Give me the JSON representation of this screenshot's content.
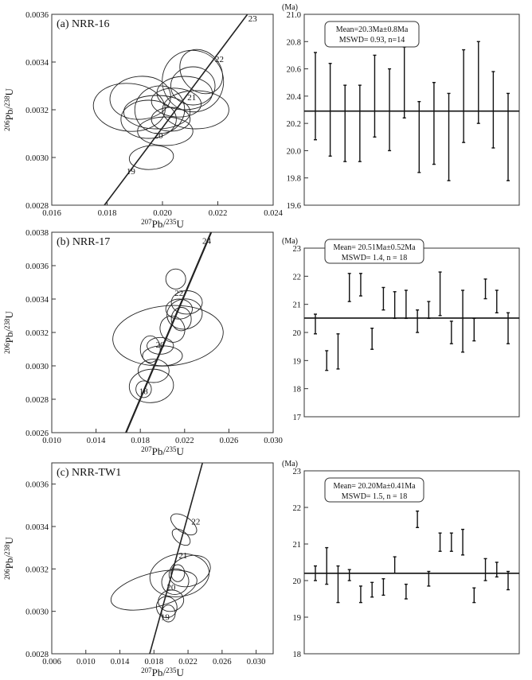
{
  "panels": [
    {
      "concordia": {
        "label": "(a)  NRR-16",
        "xlim": [
          0.016,
          0.024
        ],
        "ylim": [
          0.0028,
          0.0036
        ],
        "xticks": [
          "0.016",
          "0.018",
          "0.020",
          "0.022",
          "0.024"
        ],
        "yticks": [
          "0.0028",
          "0.0030",
          "0.0032",
          "0.0034",
          "0.0036"
        ],
        "xlabel": "207Pb/235U",
        "ylabel": "206Pb/238U",
        "line": [
          [
            0.0179,
            0.0028
          ],
          [
            0.0232,
            0.00362
          ]
        ],
        "line_width": 1.6,
        "age_labels": [
          {
            "text": "23",
            "x": 0.0231,
            "y": 0.00357
          },
          {
            "text": "22",
            "x": 0.0219,
            "y": 0.0034
          },
          {
            "text": "21",
            "x": 0.0209,
            "y": 0.00324
          },
          {
            "text": "20",
            "x": 0.0197,
            "y": 0.00308
          },
          {
            "text": "19",
            "x": 0.0187,
            "y": 0.00293
          }
        ],
        "ellipses": [
          {
            "cx": 0.0188,
            "cy": 0.00321,
            "rx": 0.0013,
            "ry": 0.0001,
            "rot": -5
          },
          {
            "cx": 0.0192,
            "cy": 0.00325,
            "rx": 0.0011,
            "ry": 9e-05,
            "rot": 5
          },
          {
            "cx": 0.0195,
            "cy": 0.00316,
            "rx": 0.001,
            "ry": 8e-05,
            "rot": 0
          },
          {
            "cx": 0.0199,
            "cy": 0.0032,
            "rx": 0.0009,
            "ry": 0.0001,
            "rot": 10
          },
          {
            "cx": 0.0201,
            "cy": 0.00311,
            "rx": 0.001,
            "ry": 6e-05,
            "rot": 0
          },
          {
            "cx": 0.0196,
            "cy": 0.003,
            "rx": 0.0008,
            "ry": 5e-05,
            "rot": 5
          },
          {
            "cx": 0.0211,
            "cy": 0.00332,
            "rx": 0.0011,
            "ry": 0.00013,
            "rot": 35
          },
          {
            "cx": 0.0211,
            "cy": 0.0033,
            "rx": 0.0008,
            "ry": 8e-05,
            "rot": 0
          },
          {
            "cx": 0.0208,
            "cy": 0.00327,
            "rx": 0.001,
            "ry": 7e-05,
            "rot": 0
          },
          {
            "cx": 0.0212,
            "cy": 0.0032,
            "rx": 0.0012,
            "ry": 8e-05,
            "rot": 0
          },
          {
            "cx": 0.0205,
            "cy": 0.00323,
            "rx": 0.0009,
            "ry": 6e-05,
            "rot": -5
          },
          {
            "cx": 0.0203,
            "cy": 0.00316,
            "rx": 0.0007,
            "ry": 5e-05,
            "rot": 0
          },
          {
            "cx": 0.0198,
            "cy": 0.00319,
            "rx": 0.0012,
            "ry": 7e-05,
            "rot": 0
          },
          {
            "cx": 0.0214,
            "cy": 0.00336,
            "rx": 0.0007,
            "ry": 0.0001,
            "rot": 40
          }
        ]
      },
      "weighted_mean": {
        "unit": "(Ma)",
        "ylim": [
          19.6,
          21.0
        ],
        "yticks": [
          "19.6",
          "19.8",
          "20.0",
          "20.2",
          "20.4",
          "20.6",
          "20.8",
          "21.0"
        ],
        "mean": 20.29,
        "stats_line1": "Mean=20.3Ma±0.8Ma",
        "stats_line2": "MSWD= 0.93, n=14",
        "bars": [
          [
            20.08,
            20.72
          ],
          [
            19.96,
            20.64
          ],
          [
            19.92,
            20.48
          ],
          [
            19.92,
            20.48
          ],
          [
            20.1,
            20.7
          ],
          [
            20.0,
            20.6
          ],
          [
            20.24,
            20.76
          ],
          [
            19.84,
            20.36
          ],
          [
            19.9,
            20.5
          ],
          [
            19.78,
            20.42
          ],
          [
            20.06,
            20.74
          ],
          [
            20.2,
            20.8
          ],
          [
            20.02,
            20.58
          ],
          [
            19.78,
            20.42
          ]
        ]
      }
    },
    {
      "concordia": {
        "label": "(b)  NRR-17",
        "xlim": [
          0.01,
          0.03
        ],
        "ylim": [
          0.0026,
          0.0038
        ],
        "xticks": [
          "0.010",
          "0.014",
          "0.018",
          "0.022",
          "0.026",
          "0.030"
        ],
        "yticks": [
          "0.0026",
          "0.0028",
          "0.0030",
          "0.0032",
          "0.0034",
          "0.0036",
          "0.0038"
        ],
        "xlabel": "207Pb/235U",
        "ylabel": "206Pb/238U",
        "line": [
          [
            0.0167,
            0.0026
          ],
          [
            0.0244,
            0.0038
          ]
        ],
        "line_width": 2.2,
        "age_labels": [
          {
            "text": "24",
            "x": 0.0236,
            "y": 0.00373
          },
          {
            "text": "22",
            "x": 0.0211,
            "y": 0.00342
          },
          {
            "text": "20",
            "x": 0.0194,
            "y": 0.00311
          },
          {
            "text": "18",
            "x": 0.0179,
            "y": 0.00283
          }
        ],
        "ellipses": [
          {
            "cx": 0.0212,
            "cy": 0.00352,
            "rx": 0.0009,
            "ry": 6e-05,
            "rot": 0
          },
          {
            "cx": 0.0215,
            "cy": 0.00334,
            "rx": 0.0012,
            "ry": 6e-05,
            "rot": 0
          },
          {
            "cx": 0.022,
            "cy": 0.00331,
            "rx": 0.0016,
            "ry": 9e-05,
            "rot": 10
          },
          {
            "cx": 0.0217,
            "cy": 0.00328,
            "rx": 0.0009,
            "ry": 7e-05,
            "rot": 0
          },
          {
            "cx": 0.0209,
            "cy": 0.00322,
            "rx": 0.0011,
            "ry": 8e-05,
            "rot": 25
          },
          {
            "cx": 0.0205,
            "cy": 0.00318,
            "rx": 0.005,
            "ry": 0.00018,
            "rot": 5
          },
          {
            "cx": 0.0198,
            "cy": 0.00312,
            "rx": 0.0012,
            "ry": 5e-05,
            "rot": 0
          },
          {
            "cx": 0.02,
            "cy": 0.00306,
            "rx": 0.0018,
            "ry": 6e-05,
            "rot": 0
          },
          {
            "cx": 0.0192,
            "cy": 0.00297,
            "rx": 0.0014,
            "ry": 7e-05,
            "rot": 0
          },
          {
            "cx": 0.019,
            "cy": 0.00288,
            "rx": 0.002,
            "ry": 0.0001,
            "rot": 5
          },
          {
            "cx": 0.0183,
            "cy": 0.00286,
            "rx": 0.0007,
            "ry": 5e-05,
            "rot": 0
          },
          {
            "cx": 0.0189,
            "cy": 0.0031,
            "rx": 0.0009,
            "ry": 8e-05,
            "rot": 0
          },
          {
            "cx": 0.0222,
            "cy": 0.00338,
            "rx": 0.0014,
            "ry": 7e-05,
            "rot": 0
          }
        ]
      },
      "weighted_mean": {
        "unit": "(Ma)",
        "ylim": [
          17,
          23
        ],
        "yticks": [
          "17",
          "18",
          "19",
          "20",
          "21",
          "22",
          "23"
        ],
        "mean": 20.51,
        "stats_line1": "Mean= 20.51Ma±0.52Ma",
        "stats_line2": "MSWD= 1.4, n = 18",
        "bars": [
          [
            19.95,
            20.65
          ],
          [
            18.65,
            19.35
          ],
          [
            18.7,
            19.95
          ],
          [
            21.1,
            22.1
          ],
          [
            21.3,
            22.1
          ],
          [
            19.4,
            20.15
          ],
          [
            20.8,
            21.6
          ],
          [
            20.5,
            21.45
          ],
          [
            20.5,
            21.5
          ],
          [
            20.0,
            20.8
          ],
          [
            20.5,
            21.1
          ],
          [
            20.6,
            22.15
          ],
          [
            19.6,
            20.4
          ],
          [
            19.3,
            21.5
          ],
          [
            19.7,
            20.5
          ],
          [
            21.2,
            21.9
          ],
          [
            20.7,
            21.5
          ],
          [
            19.6,
            20.7
          ]
        ]
      }
    },
    {
      "concordia": {
        "label": "(c)  NRR-TW1",
        "xlim": [
          0.006,
          0.032
        ],
        "ylim": [
          0.0028,
          0.0037
        ],
        "xticks": [
          "0.006",
          "0.010",
          "0.014",
          "0.018",
          "0.022",
          "0.026",
          "0.030"
        ],
        "yticks": [
          "0.0028",
          "0.0030",
          "0.0032",
          "0.0034",
          "0.0036"
        ],
        "xlabel": "207Pb/235U",
        "ylabel": "206Pb/238U",
        "line": [
          [
            0.0175,
            0.0028
          ],
          [
            0.0237,
            0.0037
          ]
        ],
        "line_width": 1.6,
        "age_labels": [
          {
            "text": "22",
            "x": 0.0224,
            "y": 0.00341
          },
          {
            "text": "21",
            "x": 0.0209,
            "y": 0.00325
          },
          {
            "text": "20",
            "x": 0.0195,
            "y": 0.0031
          },
          {
            "text": "19",
            "x": 0.0188,
            "y": 0.00296
          }
        ],
        "ellipses": [
          {
            "cx": 0.0215,
            "cy": 0.00341,
            "rx": 0.0009,
            "ry": 7e-05,
            "rot": 55
          },
          {
            "cx": 0.0212,
            "cy": 0.00335,
            "rx": 0.0007,
            "ry": 5e-05,
            "rot": 50
          },
          {
            "cx": 0.021,
            "cy": 0.00317,
            "rx": 0.0035,
            "ry": 0.0001,
            "rot": 10
          },
          {
            "cx": 0.018,
            "cy": 0.0031,
            "rx": 0.0052,
            "ry": 8e-05,
            "rot": 15
          },
          {
            "cx": 0.0205,
            "cy": 0.00314,
            "rx": 0.0016,
            "ry": 6e-05,
            "rot": 20
          },
          {
            "cx": 0.02,
            "cy": 0.00305,
            "rx": 0.0015,
            "ry": 5e-05,
            "rot": 10
          },
          {
            "cx": 0.0195,
            "cy": 0.00302,
            "rx": 0.0012,
            "ry": 5e-05,
            "rot": 15
          },
          {
            "cx": 0.0197,
            "cy": 0.00299,
            "rx": 0.0008,
            "ry": 4e-05,
            "rot": 0
          },
          {
            "cx": 0.0222,
            "cy": 0.00319,
            "rx": 0.0025,
            "ry": 7e-05,
            "rot": 20
          },
          {
            "cx": 0.0208,
            "cy": 0.00318,
            "rx": 0.0008,
            "ry": 4e-05,
            "rot": 0
          }
        ]
      },
      "weighted_mean": {
        "unit": "(Ma)",
        "ylim": [
          18,
          23
        ],
        "yticks": [
          "18",
          "19",
          "20",
          "21",
          "22",
          "23"
        ],
        "mean": 20.2,
        "stats_line1": "Mean= 20.20Ma±0.41Ma",
        "stats_line2": "MSWD= 1.5, n = 18",
        "bars": [
          [
            20.0,
            20.4
          ],
          [
            19.9,
            20.9
          ],
          [
            19.4,
            20.4
          ],
          [
            20.0,
            20.3
          ],
          [
            19.4,
            19.85
          ],
          [
            19.55,
            19.95
          ],
          [
            19.6,
            20.05
          ],
          [
            20.2,
            20.65
          ],
          [
            19.5,
            19.9
          ],
          [
            21.45,
            21.9
          ],
          [
            19.85,
            20.25
          ],
          [
            20.8,
            21.3
          ],
          [
            20.8,
            21.3
          ],
          [
            20.7,
            21.4
          ],
          [
            19.4,
            19.8
          ],
          [
            20.0,
            20.6
          ],
          [
            20.1,
            20.5
          ],
          [
            19.75,
            20.25
          ]
        ]
      }
    }
  ]
}
